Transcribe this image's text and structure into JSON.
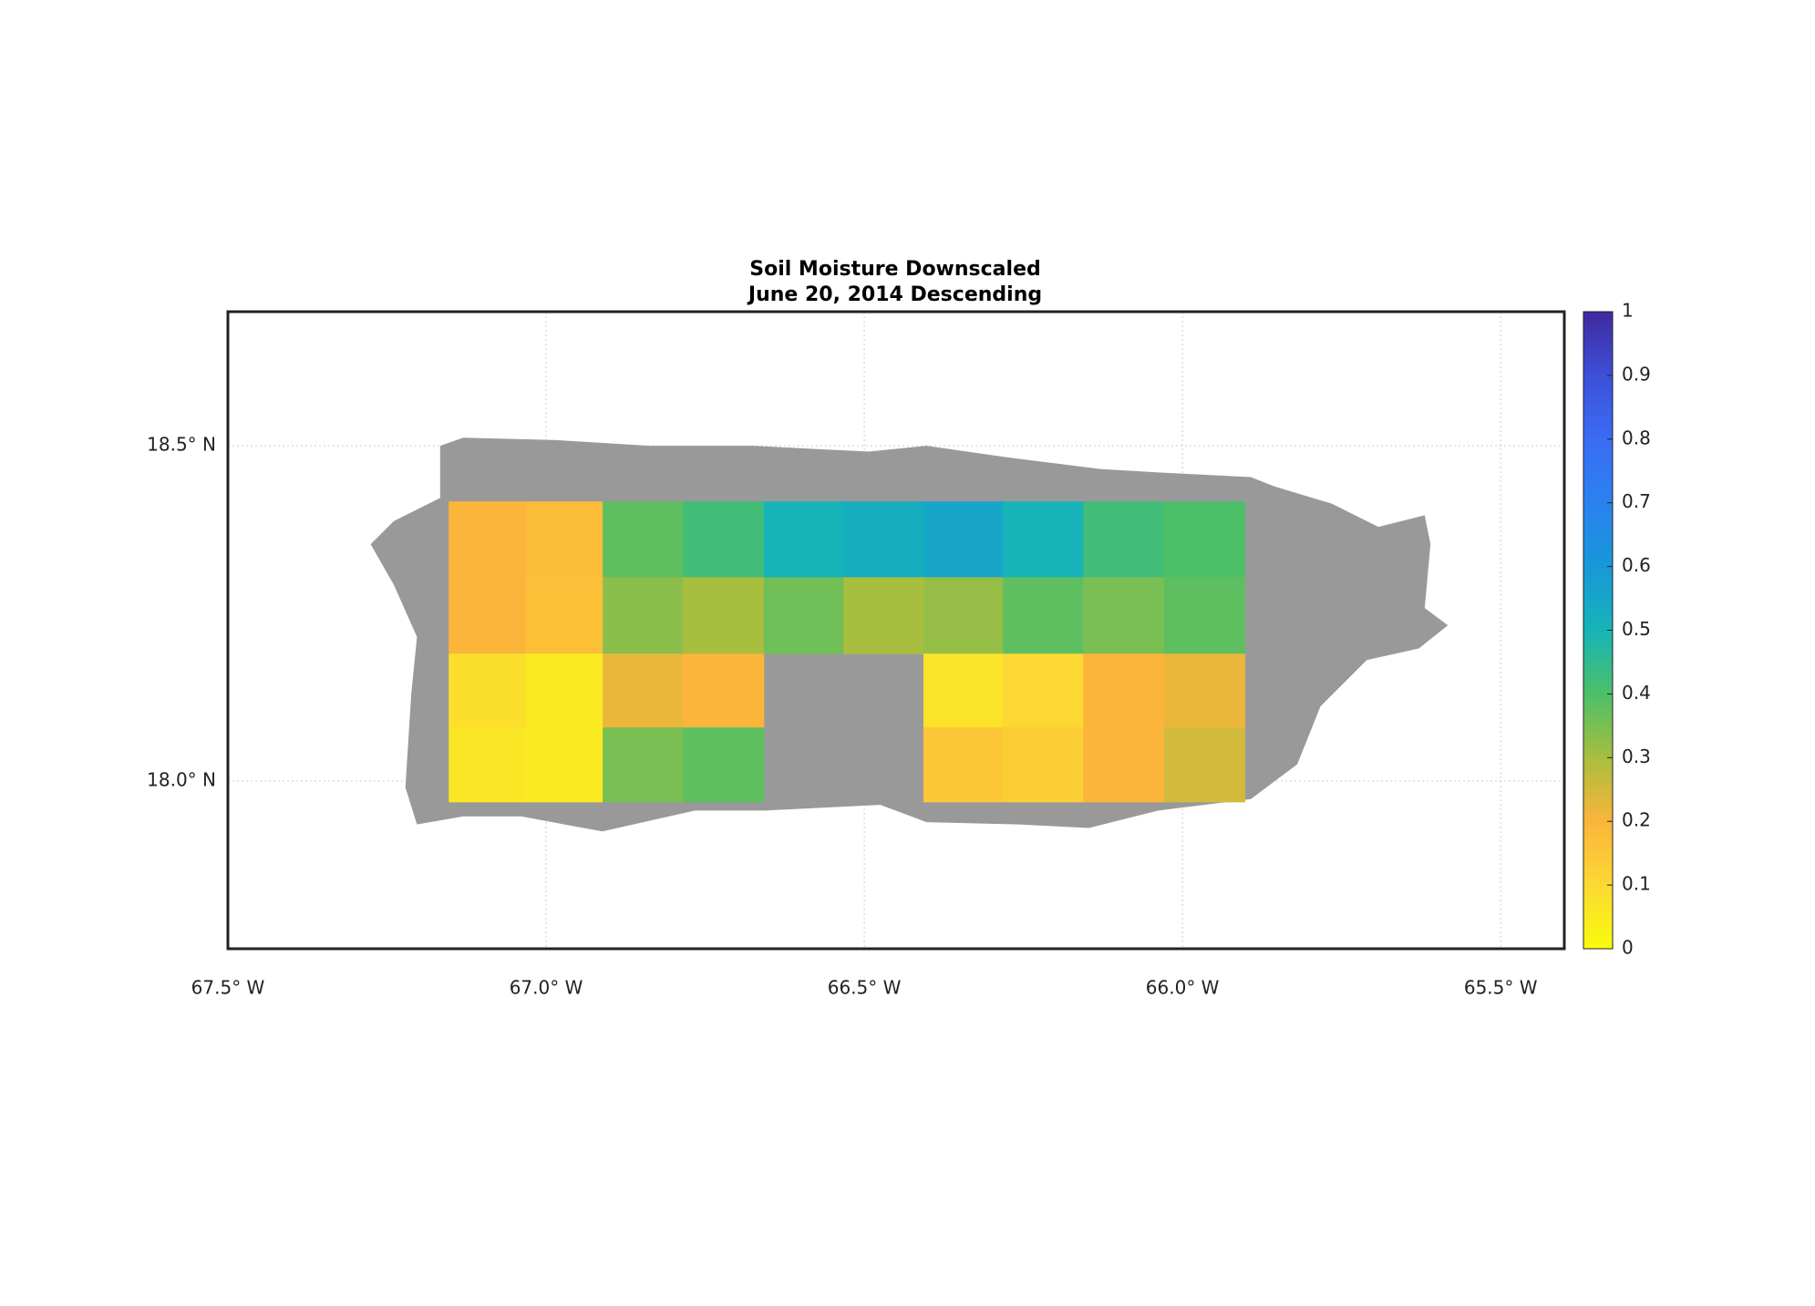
{
  "chart_data": {
    "type": "gridmap",
    "title": [
      "Soil Moisture Downscaled",
      "June 20, 2014 Descending"
    ],
    "xlim": [
      -67.5,
      -65.4
    ],
    "ylim": [
      17.75,
      18.7
    ],
    "xticks": [
      {
        "value": -67.5,
        "label": "67.5° W"
      },
      {
        "value": -67.0,
        "label": "67.0° W"
      },
      {
        "value": -66.5,
        "label": "66.5° W"
      },
      {
        "value": -66.0,
        "label": "66.0° W"
      },
      {
        "value": -65.5,
        "label": "65.5° W"
      }
    ],
    "yticks": [
      {
        "value": 18.0,
        "label": "18.0° N"
      },
      {
        "value": 18.5,
        "label": "18.5° N"
      }
    ],
    "grid": true,
    "lon_edges": [
      -67.153,
      -67.032,
      -66.911,
      -66.785,
      -66.658,
      -66.533,
      -66.407,
      -66.282,
      -66.156,
      -66.029,
      -65.902
    ],
    "lat_edges": [
      18.417,
      18.304,
      18.19,
      18.08,
      17.969
    ],
    "values": [
      [
        0.2,
        0.18,
        0.38,
        0.42,
        0.5,
        0.52,
        0.55,
        0.5,
        0.42,
        0.4
      ],
      [
        0.2,
        0.17,
        0.33,
        0.3,
        0.36,
        0.3,
        0.32,
        0.38,
        0.35,
        0.38
      ],
      [
        0.08,
        0.05,
        0.22,
        0.2,
        null,
        null,
        0.07,
        0.1,
        0.2,
        0.22
      ],
      [
        0.06,
        0.05,
        0.35,
        0.38,
        null,
        null,
        0.15,
        0.13,
        0.2,
        0.25
      ]
    ],
    "clim": [
      0,
      1
    ],
    "cticks": [
      0,
      0.1,
      0.2,
      0.3,
      0.4,
      0.5,
      0.6,
      0.7,
      0.8,
      0.9,
      1
    ],
    "colormap": [
      "#f9fb0e",
      "#fbd833",
      "#fbb53a",
      "#a8be3f",
      "#4cbf68",
      "#16b4b8",
      "#1798d9",
      "#2a82f0",
      "#3a6cf5",
      "#3d4fd8",
      "#3e2a9f"
    ]
  }
}
